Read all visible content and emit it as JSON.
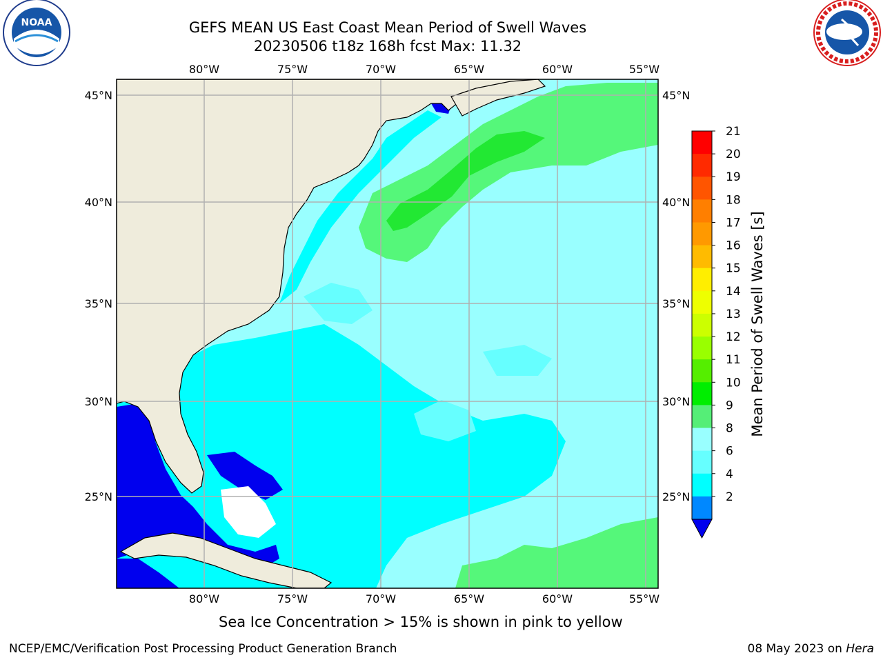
{
  "header": {
    "title_line1": "GEFS MEAN US East Coast Mean Period of Swell Waves",
    "title_line2": "20230506 t18z 168h fcst   Max: 11.32"
  },
  "logos": {
    "left": {
      "name": "noaa-logo",
      "text": "NOAA"
    },
    "right": {
      "name": "nws-logo",
      "text": "NATIONAL WEATHER SERVICE"
    }
  },
  "map": {
    "lon_labels": [
      "80°W",
      "75°W",
      "70°W",
      "65°W",
      "60°W",
      "55°W"
    ],
    "lat_labels": [
      "45°N",
      "40°N",
      "35°N",
      "30°N",
      "25°N"
    ],
    "colors": {
      "land": "#efecdc",
      "ocean_base": "#99ffff",
      "field_cyan": "#00ffff",
      "field_light_cyan": "#66ffff",
      "field_green": "#55f77a",
      "field_bright_green": "#22e833",
      "field_blue": "#0000ee",
      "grid": "#b0b0b0"
    }
  },
  "colorbar": {
    "title": "Mean Period of Swell Waves [s]",
    "ticks": [
      "21",
      "20",
      "19",
      "18",
      "17",
      "16",
      "15",
      "14",
      "13",
      "12",
      "11",
      "10",
      "9",
      "8",
      "6",
      "4",
      "2"
    ],
    "colors": [
      "#ff0000",
      "#ff2a00",
      "#ff5500",
      "#ff7f00",
      "#ff9900",
      "#ffbb00",
      "#ffee00",
      "#eeff00",
      "#ccff00",
      "#99ff00",
      "#55ee00",
      "#00ee00",
      "#55ee77",
      "#99ffff",
      "#66ffff",
      "#00ffff",
      "#0088ff"
    ],
    "extend_color": "#0000ee"
  },
  "caption": "Sea Ice Concentration > 15% is shown in pink to yellow",
  "footer": {
    "left": "NCEP/EMC/Verification Post Processing Product Generation Branch",
    "right_date": "08 May 2023 on ",
    "right_machine": "Hera"
  }
}
